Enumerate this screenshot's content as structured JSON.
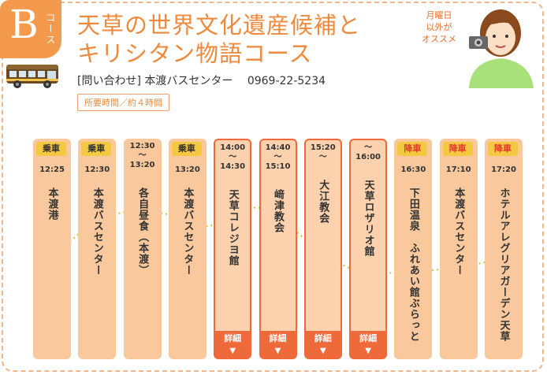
{
  "course": {
    "letter": "B",
    "label": "コース"
  },
  "title": {
    "line1": "天草の世界文化遺産候補と",
    "line2": "キリシタン物語コース"
  },
  "contact": {
    "label": "[問い合わせ] 本渡バスセンター",
    "phone": "0969-22-5234"
  },
  "duration": "所要時間／約４時間",
  "recommend": {
    "line1": "月曜日",
    "line2": "以外が",
    "line3": "オススメ"
  },
  "colors": {
    "accent": "#ef8a3c",
    "column": "#f9c89c",
    "detail": "#ef6a3a",
    "tag": "#f5c842"
  },
  "stops": [
    {
      "tag": "乗車",
      "time1": "12:25",
      "time2": "",
      "time3": "",
      "place": "本渡港",
      "detail": ""
    },
    {
      "tag": "乗車",
      "time1": "12:30",
      "time2": "",
      "time3": "",
      "place": "本渡バスセンター",
      "detail": ""
    },
    {
      "tag": "",
      "time1": "12:30",
      "time2": "～",
      "time3": "13:20",
      "place": "各自昼食（本渡）",
      "detail": ""
    },
    {
      "tag": "乗車",
      "time1": "13:20",
      "time2": "",
      "time3": "",
      "place": "本渡バスセンター",
      "detail": ""
    },
    {
      "tag": "",
      "time1": "14:00",
      "time2": "～",
      "time3": "14:30",
      "place": "天草コレジヨ館",
      "detail": "詳細"
    },
    {
      "tag": "",
      "time1": "14:40",
      "time2": "～",
      "time3": "15:10",
      "place": "﨑津教会",
      "detail": "詳細"
    },
    {
      "tag": "",
      "time1": "15:20",
      "time2": "～",
      "time3": "",
      "place": "大江教会",
      "detail": "詳細"
    },
    {
      "tag": "",
      "time1": "～",
      "time2": "16:00",
      "time3": "",
      "place": "天草ロザリオ館",
      "detail": "詳細"
    },
    {
      "tag": "降車",
      "time1": "16:30",
      "time2": "",
      "time3": "",
      "place": "下田温泉　ふれあい館ぶらっと",
      "detail": ""
    },
    {
      "tag": "降車",
      "time1": "17:10",
      "time2": "",
      "time3": "",
      "place": "本渡バスセンター",
      "detail": ""
    },
    {
      "tag": "降車",
      "time1": "17:20",
      "time2": "",
      "time3": "",
      "place": "ホテルアレグリアガーデン天草",
      "detail": ""
    }
  ]
}
